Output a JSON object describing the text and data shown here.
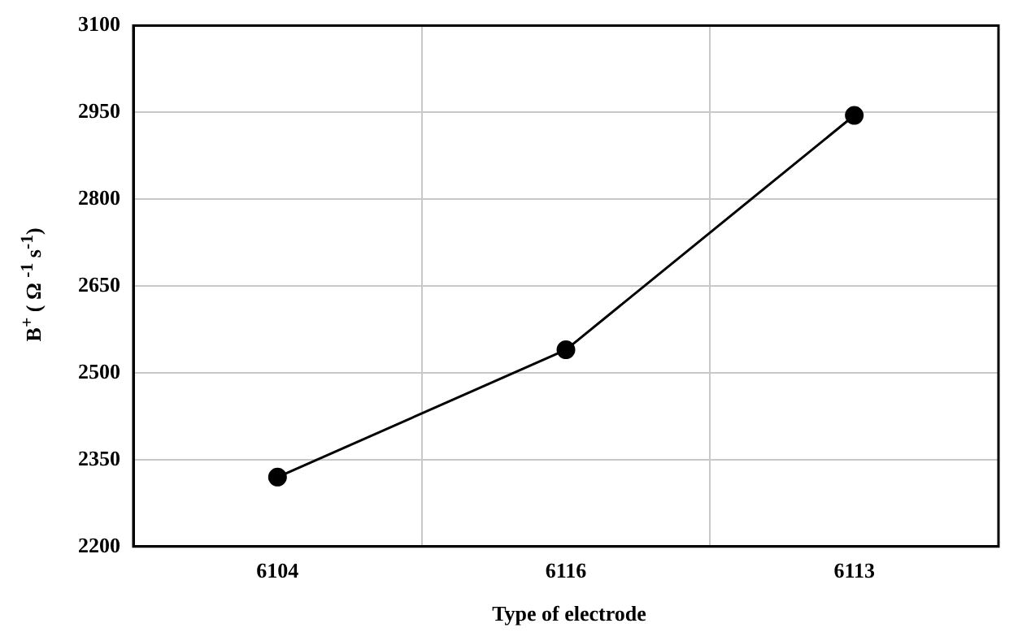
{
  "chart_data": {
    "type": "line",
    "xlabel": "Type of electrode",
    "ylabel": "B$^{+}$ ( Ω $^{-1}$ s$^{-1}$)",
    "categories": [
      "6104",
      "6116",
      "6113"
    ],
    "series": [
      {
        "color": "#000000",
        "values": [
          2320,
          2540,
          2945
        ]
      }
    ],
    "ylim": [
      2200,
      3100
    ],
    "yticks": [
      2200,
      2350,
      2500,
      2650,
      2800,
      2950,
      3100
    ],
    "grid": true,
    "marker": "circle",
    "line_style": "solid",
    "legend": false
  }
}
